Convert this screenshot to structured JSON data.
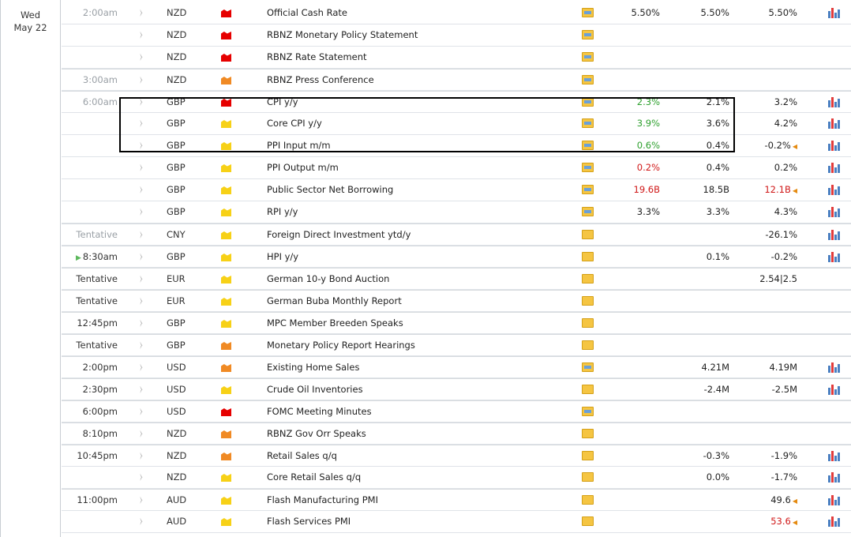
{
  "date": {
    "weekday": "Wed",
    "day": "May 22"
  },
  "colors": {
    "high": "#e60000",
    "medium": "#f08a24",
    "low": "#f7d117",
    "better": "#2ea02e",
    "worse": "#d01818"
  },
  "rows": [
    {
      "time": "2:00am",
      "time_muted": true,
      "currency": "NZD",
      "impact": "high",
      "event": "Official Cash Rate",
      "actual": "5.50%",
      "actual_color": "",
      "forecast": "5.50%",
      "previous": "5.50%",
      "previous_color": "",
      "revised": false,
      "released": true,
      "chart": true,
      "group_start": true
    },
    {
      "time": "",
      "currency": "NZD",
      "impact": "high",
      "event": "RBNZ Monetary Policy Statement",
      "actual": "",
      "forecast": "",
      "previous": "",
      "revised": false,
      "released": true,
      "chart": false
    },
    {
      "time": "",
      "currency": "NZD",
      "impact": "high",
      "event": "RBNZ Rate Statement",
      "actual": "",
      "forecast": "",
      "previous": "",
      "revised": false,
      "released": true,
      "chart": false
    },
    {
      "time": "3:00am",
      "time_muted": true,
      "currency": "NZD",
      "impact": "medium",
      "event": "RBNZ Press Conference",
      "actual": "",
      "forecast": "",
      "previous": "",
      "revised": false,
      "released": true,
      "chart": false,
      "group_start": true
    },
    {
      "time": "6:00am",
      "time_muted": true,
      "currency": "GBP",
      "impact": "high",
      "event": "CPI y/y",
      "actual": "2.3%",
      "actual_color": "green",
      "forecast": "2.1%",
      "previous": "3.2%",
      "previous_color": "",
      "revised": false,
      "released": true,
      "chart": true,
      "group_start": true
    },
    {
      "time": "",
      "currency": "GBP",
      "impact": "low",
      "event": "Core CPI y/y",
      "actual": "3.9%",
      "actual_color": "green",
      "forecast": "3.6%",
      "previous": "4.2%",
      "previous_color": "",
      "revised": false,
      "released": true,
      "chart": true
    },
    {
      "time": "",
      "currency": "GBP",
      "impact": "low",
      "event": "PPI Input m/m",
      "actual": "0.6%",
      "actual_color": "green",
      "forecast": "0.4%",
      "previous": "-0.2%",
      "previous_color": "",
      "revised": true,
      "released": true,
      "chart": true
    },
    {
      "time": "",
      "currency": "GBP",
      "impact": "low",
      "event": "PPI Output m/m",
      "actual": "0.2%",
      "actual_color": "red",
      "forecast": "0.4%",
      "previous": "0.2%",
      "previous_color": "",
      "revised": false,
      "released": true,
      "chart": true
    },
    {
      "time": "",
      "currency": "GBP",
      "impact": "low",
      "event": "Public Sector Net Borrowing",
      "actual": "19.6B",
      "actual_color": "red",
      "forecast": "18.5B",
      "previous": "12.1B",
      "previous_color": "red",
      "revised": true,
      "released": true,
      "chart": true
    },
    {
      "time": "",
      "currency": "GBP",
      "impact": "low",
      "event": "RPI y/y",
      "actual": "3.3%",
      "actual_color": "",
      "forecast": "3.3%",
      "previous": "4.3%",
      "previous_color": "",
      "revised": false,
      "released": true,
      "chart": true
    },
    {
      "time": "Tentative",
      "time_muted": true,
      "currency": "CNY",
      "impact": "low",
      "event": "Foreign Direct Investment ytd/y",
      "actual": "",
      "forecast": "",
      "previous": "-26.1%",
      "previous_color": "",
      "revised": false,
      "released": false,
      "chart": true,
      "group_start": true
    },
    {
      "time": "8:30am",
      "time_muted": false,
      "next": true,
      "currency": "GBP",
      "impact": "low",
      "event": "HPI y/y",
      "actual": "",
      "forecast": "0.1%",
      "previous": "-0.2%",
      "previous_color": "",
      "revised": false,
      "released": false,
      "chart": true,
      "group_start": true
    },
    {
      "time": "Tentative",
      "time_muted": false,
      "currency": "EUR",
      "impact": "low",
      "event": "German 10-y Bond Auction",
      "actual": "",
      "forecast": "",
      "previous": "2.54|2.5",
      "previous_color": "",
      "revised": false,
      "released": false,
      "chart": false,
      "group_start": true
    },
    {
      "time": "Tentative",
      "time_muted": false,
      "currency": "EUR",
      "impact": "low",
      "event": "German Buba Monthly Report",
      "actual": "",
      "forecast": "",
      "previous": "",
      "revised": false,
      "released": false,
      "chart": false,
      "group_start": true
    },
    {
      "time": "12:45pm",
      "time_muted": false,
      "currency": "GBP",
      "impact": "low",
      "event": "MPC Member Breeden Speaks",
      "actual": "",
      "forecast": "",
      "previous": "",
      "revised": false,
      "released": false,
      "chart": false,
      "group_start": true
    },
    {
      "time": "Tentative",
      "time_muted": false,
      "currency": "GBP",
      "impact": "medium",
      "event": "Monetary Policy Report Hearings",
      "actual": "",
      "forecast": "",
      "previous": "",
      "revised": false,
      "released": false,
      "chart": false,
      "group_start": true
    },
    {
      "time": "2:00pm",
      "time_muted": false,
      "currency": "USD",
      "impact": "medium",
      "event": "Existing Home Sales",
      "actual": "",
      "forecast": "4.21M",
      "previous": "4.19M",
      "previous_color": "",
      "revised": false,
      "released": true,
      "chart": true,
      "group_start": true
    },
    {
      "time": "2:30pm",
      "time_muted": false,
      "currency": "USD",
      "impact": "low",
      "event": "Crude Oil Inventories",
      "actual": "",
      "forecast": "-2.4M",
      "previous": "-2.5M",
      "previous_color": "",
      "revised": false,
      "released": false,
      "chart": true,
      "group_start": true
    },
    {
      "time": "6:00pm",
      "time_muted": false,
      "currency": "USD",
      "impact": "high",
      "event": "FOMC Meeting Minutes",
      "actual": "",
      "forecast": "",
      "previous": "",
      "revised": false,
      "released": true,
      "chart": false,
      "group_start": true
    },
    {
      "time": "8:10pm",
      "time_muted": false,
      "currency": "NZD",
      "impact": "medium",
      "event": "RBNZ Gov Orr Speaks",
      "actual": "",
      "forecast": "",
      "previous": "",
      "revised": false,
      "released": false,
      "chart": false,
      "group_start": true
    },
    {
      "time": "10:45pm",
      "time_muted": false,
      "currency": "NZD",
      "impact": "medium",
      "event": "Retail Sales q/q",
      "actual": "",
      "forecast": "-0.3%",
      "previous": "-1.9%",
      "previous_color": "",
      "revised": false,
      "released": false,
      "chart": true,
      "group_start": true
    },
    {
      "time": "",
      "currency": "NZD",
      "impact": "low",
      "event": "Core Retail Sales q/q",
      "actual": "",
      "forecast": "0.0%",
      "previous": "-1.7%",
      "previous_color": "",
      "revised": false,
      "released": false,
      "chart": true
    },
    {
      "time": "11:00pm",
      "time_muted": false,
      "currency": "AUD",
      "impact": "low",
      "event": "Flash Manufacturing PMI",
      "actual": "",
      "forecast": "",
      "previous": "49.6",
      "previous_color": "",
      "revised": true,
      "released": false,
      "chart": true,
      "group_start": true
    },
    {
      "time": "",
      "currency": "AUD",
      "impact": "low",
      "event": "Flash Services PMI",
      "actual": "",
      "forecast": "",
      "previous": "53.6",
      "previous_color": "red",
      "revised": true,
      "released": false,
      "chart": true
    }
  ]
}
